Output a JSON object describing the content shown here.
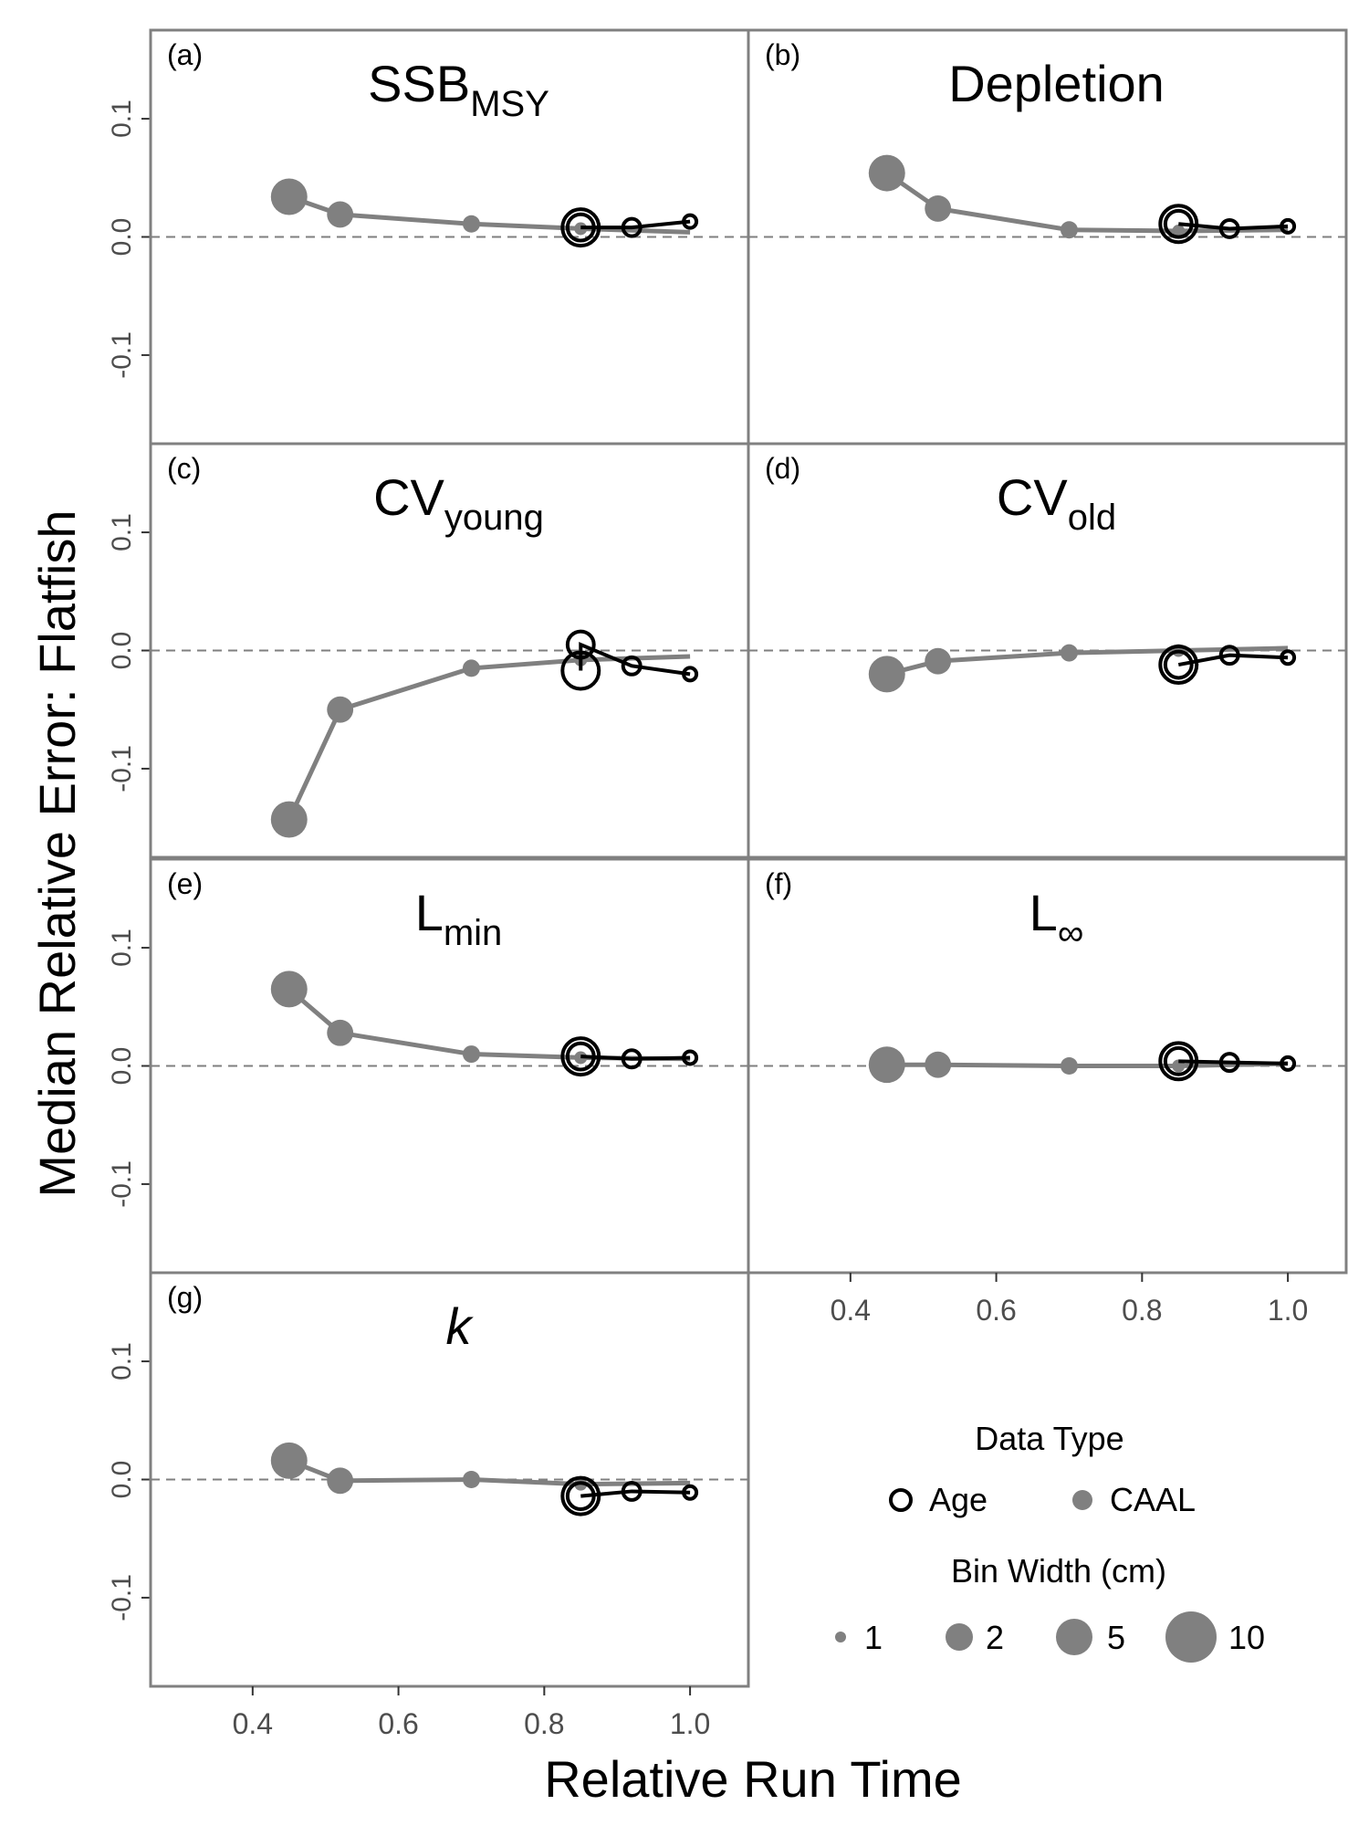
{
  "figure": {
    "y_axis_label": "Median Relative Error: Flatfish",
    "x_axis_label": "Relative Run Time"
  },
  "legend": {
    "data_type_title": "Data Type",
    "data_type_entries": [
      {
        "label": "Age",
        "style": "open"
      },
      {
        "label": "CAAL",
        "style": "filled"
      }
    ],
    "bin_width_title": "Bin Width (cm)",
    "bin_width_entries": [
      {
        "label": "1",
        "bin": 1
      },
      {
        "label": "2",
        "bin": 2
      },
      {
        "label": "5",
        "bin": 5
      },
      {
        "label": "10",
        "bin": 10
      }
    ]
  },
  "colors": {
    "caal": "#808080",
    "age": "#000000",
    "panel_border": "#808080",
    "zero_line": "#7f7f7f",
    "axis_text": "#4d4d4d"
  },
  "chart_data": {
    "type": "scatter",
    "x_ticks": [
      "0.4",
      "0.6",
      "0.8",
      "1.0"
    ],
    "y_ticks": [
      "0.1",
      "0.0",
      "-0.1"
    ],
    "xlim": [
      0.26,
      1.08
    ],
    "ylim": [
      -0.175,
      0.175
    ],
    "reference_line": {
      "y": 0,
      "style": "dashed"
    },
    "bin_widths": [
      1,
      2,
      5,
      10
    ],
    "caal_x": [
      0.45,
      0.52,
      0.7,
      0.85,
      1.0
    ],
    "age_x": [
      0.85,
      0.85,
      0.92,
      1.0
    ],
    "panels": [
      {
        "tag": "(a)",
        "title_main": "SSB",
        "title_sub": "MSY",
        "italic": false,
        "caal": [
          0.034,
          0.019,
          0.011,
          0.007,
          0.004
        ],
        "age": [
          0.008,
          0.008,
          0.008,
          0.013
        ]
      },
      {
        "tag": "(b)",
        "title_main": "Depletion",
        "title_sub": "",
        "italic": false,
        "caal": [
          0.054,
          0.024,
          0.006,
          0.005,
          0.006
        ],
        "age": [
          0.011,
          0.011,
          0.007,
          0.009
        ]
      },
      {
        "tag": "(c)",
        "title_main": "CV",
        "title_sub": "young",
        "italic": false,
        "caal": [
          -0.143,
          -0.05,
          -0.015,
          -0.008,
          -0.005
        ],
        "age": [
          -0.017,
          0.005,
          -0.013,
          -0.02
        ]
      },
      {
        "tag": "(d)",
        "title_main": "CV",
        "title_sub": "old",
        "italic": false,
        "caal": [
          -0.02,
          -0.009,
          -0.002,
          0.0,
          0.002
        ],
        "age": [
          -0.012,
          -0.012,
          -0.004,
          -0.006
        ]
      },
      {
        "tag": "(e)",
        "title_main": "L",
        "title_sub": "min",
        "italic": false,
        "caal": [
          0.065,
          0.028,
          0.01,
          0.007,
          0.006
        ],
        "age": [
          0.008,
          0.008,
          0.006,
          0.007
        ]
      },
      {
        "tag": "(f)",
        "title_main": "L",
        "title_sub": "∞",
        "italic": false,
        "caal": [
          0.001,
          0.001,
          0.0,
          0.0,
          0.002
        ],
        "age": [
          0.004,
          0.004,
          0.003,
          0.002
        ]
      },
      {
        "tag": "(g)",
        "title_main": "k",
        "title_sub": "",
        "italic": true,
        "caal": [
          0.016,
          -0.001,
          0.0,
          -0.004,
          -0.003
        ],
        "age": [
          -0.014,
          -0.014,
          -0.01,
          -0.011
        ]
      }
    ]
  }
}
